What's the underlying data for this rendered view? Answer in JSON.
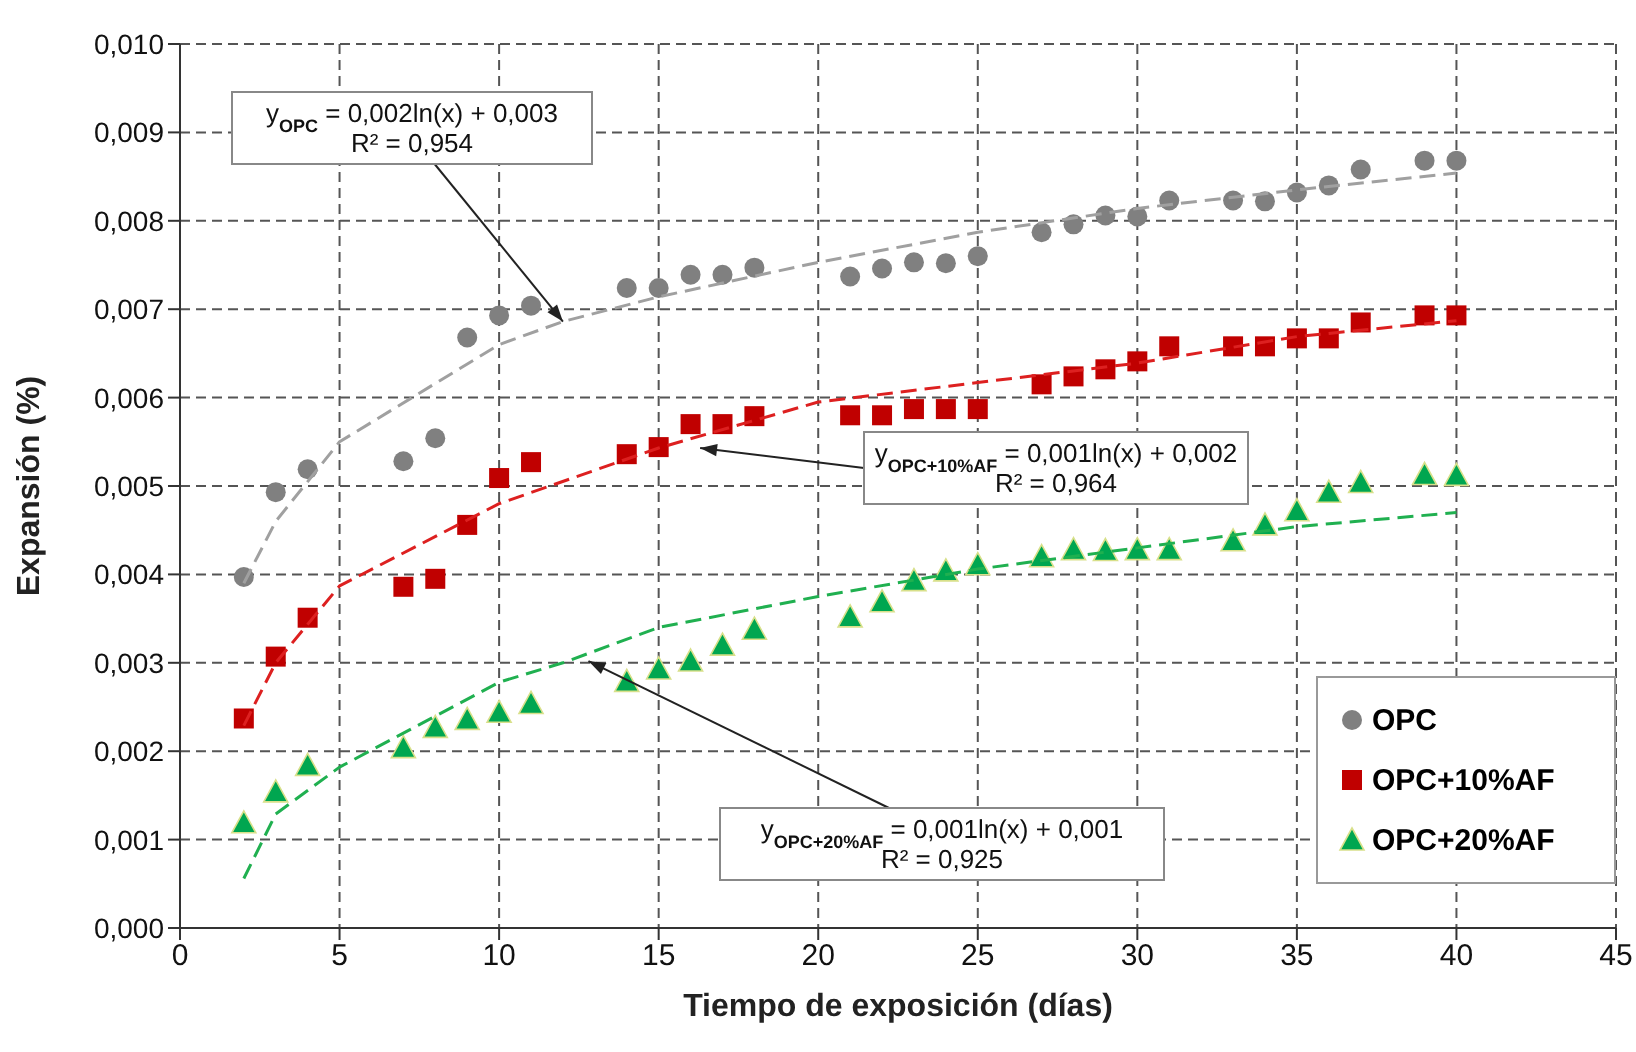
{
  "chart_data": {
    "type": "scatter",
    "xlabel": "Tiempo de exposición (días)",
    "ylabel": "Expansión (%)",
    "xlim": [
      0,
      45
    ],
    "xticks": [
      0,
      5,
      10,
      15,
      20,
      25,
      30,
      35,
      40,
      45
    ],
    "ylim": [
      0,
      0.01
    ],
    "yticks": [
      {
        "value": 0,
        "label": "0,000"
      },
      {
        "value": 0.001,
        "label": "0,001"
      },
      {
        "value": 0.002,
        "label": "0,002"
      },
      {
        "value": 0.003,
        "label": "0,003"
      },
      {
        "value": 0.004,
        "label": "0,004"
      },
      {
        "value": 0.005,
        "label": "0,005"
      },
      {
        "value": 0.006,
        "label": "0,006"
      },
      {
        "value": 0.007,
        "label": "0,007"
      },
      {
        "value": 0.008,
        "label": "0,008"
      },
      {
        "value": 0.009,
        "label": "0,009"
      },
      {
        "value": 0.01,
        "label": "0,010"
      }
    ],
    "grid": true,
    "legend": "bottom right",
    "series": [
      {
        "name": "OPC",
        "marker": "circle",
        "color": "#808080",
        "x": [
          2,
          3,
          4,
          7,
          8,
          9,
          10,
          11,
          14,
          15,
          16,
          17,
          18,
          21,
          22,
          23,
          24,
          25,
          27,
          28,
          29,
          30,
          31,
          33,
          34,
          35,
          36,
          37,
          39,
          40
        ],
        "values": [
          0.00397,
          0.00493,
          0.00519,
          0.00528,
          0.00554,
          0.00668,
          0.00693,
          0.00704,
          0.00724,
          0.00724,
          0.00739,
          0.00739,
          0.00747,
          0.00737,
          0.00746,
          0.00753,
          0.00752,
          0.0076,
          0.00787,
          0.00796,
          0.00806,
          0.00805,
          0.00823,
          0.00823,
          0.00822,
          0.00832,
          0.0084,
          0.00858,
          0.00868,
          0.00868
        ]
      },
      {
        "name": "OPC+10%AF",
        "marker": "square",
        "color": "#c00000",
        "x": [
          2,
          3,
          4,
          7,
          8,
          9,
          10,
          11,
          14,
          15,
          16,
          17,
          18,
          21,
          22,
          23,
          24,
          25,
          27,
          28,
          29,
          30,
          31,
          33,
          34,
          35,
          36,
          37,
          39,
          40
        ],
        "values": [
          0.00237,
          0.00307,
          0.00351,
          0.00386,
          0.00395,
          0.00456,
          0.00509,
          0.00527,
          0.00536,
          0.00544,
          0.0057,
          0.0057,
          0.00579,
          0.0058,
          0.0058,
          0.00587,
          0.00587,
          0.00587,
          0.00615,
          0.00624,
          0.00632,
          0.00641,
          0.00658,
          0.00658,
          0.00658,
          0.00667,
          0.00667,
          0.00685,
          0.00693,
          0.00693
        ]
      },
      {
        "name": "OPC+20%AF",
        "marker": "triangle",
        "color": "#00a650",
        "x": [
          2,
          3,
          4,
          7,
          8,
          9,
          10,
          11,
          14,
          15,
          16,
          17,
          18,
          21,
          22,
          23,
          24,
          25,
          27,
          28,
          29,
          30,
          31,
          33,
          34,
          35,
          36,
          37,
          39,
          40
        ],
        "values": [
          0.00119,
          0.00154,
          0.00184,
          0.00204,
          0.00227,
          0.00236,
          0.00244,
          0.00254,
          0.00279,
          0.00293,
          0.00302,
          0.0032,
          0.00338,
          0.00352,
          0.00369,
          0.00393,
          0.00404,
          0.00411,
          0.0042,
          0.00428,
          0.00427,
          0.00428,
          0.00428,
          0.00438,
          0.00456,
          0.00472,
          0.00493,
          0.00504,
          0.00513,
          0.00512
        ]
      },
      {
        "type": "line",
        "line_style": "dashed",
        "marker": "none",
        "color": "#a0a0a0",
        "x": [
          2,
          3,
          5,
          10,
          12,
          15,
          20,
          25,
          30,
          35,
          40
        ],
        "values": [
          0.0039,
          0.0046,
          0.0055,
          0.0066,
          0.00686,
          0.00714,
          0.00753,
          0.00787,
          0.00814,
          0.00835,
          0.00854
        ]
      },
      {
        "type": "line",
        "line_style": "dashed",
        "marker": "none",
        "color": "#dd2020",
        "x": [
          2,
          3,
          5,
          10,
          15,
          20,
          25,
          30,
          35,
          40
        ],
        "values": [
          0.00229,
          0.003,
          0.00387,
          0.0048,
          0.00543,
          0.00595,
          0.00617,
          0.00639,
          0.00669,
          0.00687
        ]
      },
      {
        "type": "line",
        "line_style": "dashed",
        "marker": "none",
        "color": "#20b050",
        "x": [
          2,
          3,
          5,
          10,
          12,
          15,
          20,
          25,
          30,
          35,
          40
        ],
        "values": [
          0.00056,
          0.00129,
          0.00182,
          0.00278,
          0.003,
          0.0034,
          0.00375,
          0.00406,
          0.0043,
          0.00454,
          0.0047
        ]
      }
    ],
    "annotations": [
      {
        "text": "y$_{OPC}$ = 0,002ln(x) + 0,003\nR² = 0,954",
        "x": 12,
        "y": 0.00686
      },
      {
        "text": "y$_{OPC+10%AF}$ = 0,001ln(x) + 0,002\nR² = 0,964",
        "x": 16.3,
        "y": 0.00543
      },
      {
        "text": "y$_{OPC+20%AF}$ = 0,001ln(x) + 0,001\nR² = 0,925",
        "x": 12.8,
        "y": 0.00302
      }
    ]
  }
}
